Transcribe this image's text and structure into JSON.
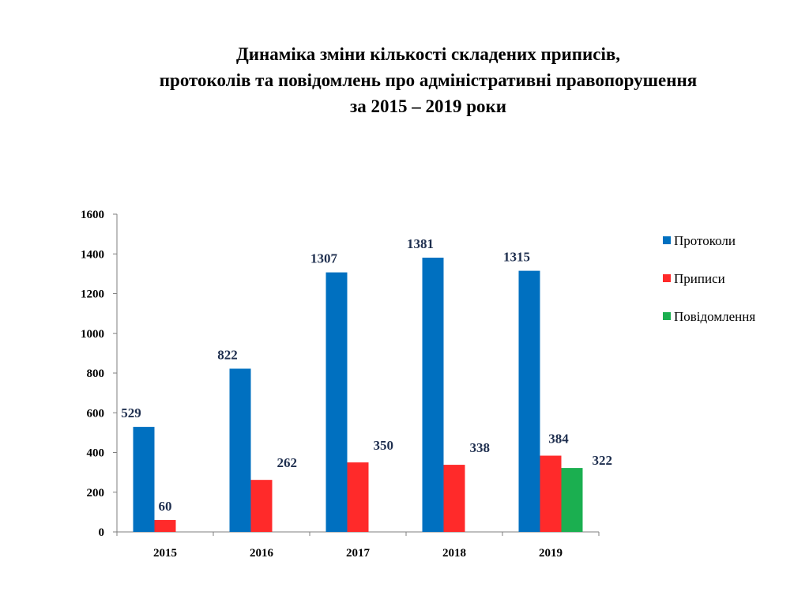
{
  "title": {
    "lines": [
      "Динаміка зміни кількості складених приписів,",
      "протоколів та повідомлень про адміністративні правопорушення",
      "за 2015 – 2019 роки"
    ]
  },
  "chart_data": {
    "type": "bar",
    "categories": [
      "2015",
      "2016",
      "2017",
      "2018",
      "2019"
    ],
    "series": [
      {
        "name": "Протоколи",
        "color": "#0070C0",
        "values": [
          529,
          822,
          1307,
          1381,
          1315
        ]
      },
      {
        "name": "Приписи",
        "color": "#FF2A2A",
        "values": [
          60,
          262,
          350,
          338,
          384
        ]
      },
      {
        "name": "Повідомлення",
        "color": "#1BAF50",
        "values": [
          null,
          null,
          null,
          null,
          322
        ]
      }
    ],
    "ylim": [
      0,
      1600
    ],
    "yticks": [
      0,
      200,
      400,
      600,
      800,
      1000,
      1200,
      1400,
      1600
    ],
    "grid": false,
    "legend_position": "right",
    "data_labels": true
  }
}
